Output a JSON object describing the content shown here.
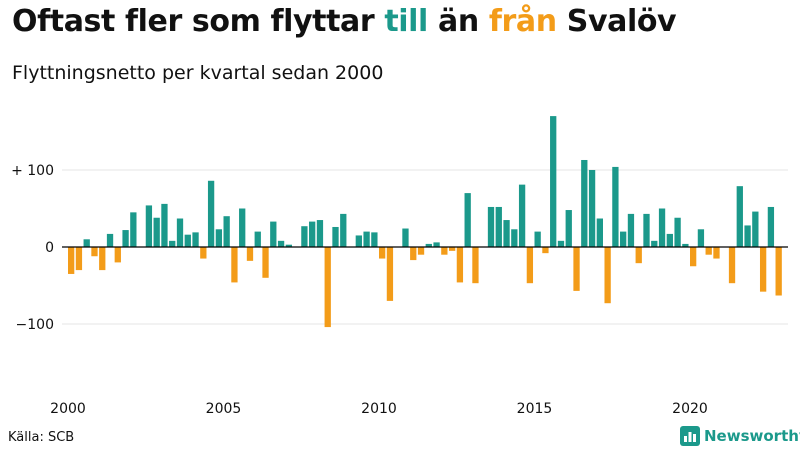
{
  "header": {
    "title_parts": [
      "Oftast fler som flyttar ",
      "till",
      " än ",
      "från",
      " Svalöv"
    ],
    "subtitle": "Flyttningsnetto per kvartal sedan 2000"
  },
  "footer": {
    "source": "Källa: SCB",
    "brand": "Newsworthy",
    "brand_icon": "bar-chart-icon"
  },
  "colors": {
    "positive": "#1b998b",
    "negative": "#f39c19",
    "grid": "#e6e6e6",
    "zero_line": "#000000"
  },
  "chart_data": {
    "type": "bar",
    "title": "Oftast fler som flyttar till än från Svalöv",
    "subtitle": "Flyttningsnetto per kvartal sedan 2000",
    "xlabel": "",
    "ylabel": "",
    "x_start": "2000 Q1",
    "y_ticks": [
      {
        "value": 100,
        "label": "+ 100"
      },
      {
        "value": 0,
        "label": "0"
      },
      {
        "value": -100,
        "label": "−100"
      }
    ],
    "x_ticks": [
      {
        "value": 2000,
        "label": "2000"
      },
      {
        "value": 2005,
        "label": "2005"
      },
      {
        "value": 2010,
        "label": "2010"
      },
      {
        "value": 2015,
        "label": "2015"
      },
      {
        "value": 2020,
        "label": "2020"
      }
    ],
    "ylim": [
      -130,
      175
    ],
    "grid": true,
    "values": [
      -35,
      -30,
      10,
      -12,
      -30,
      17,
      -20,
      22,
      45,
      0,
      54,
      38,
      56,
      8,
      37,
      16,
      19,
      -15,
      86,
      23,
      40,
      -46,
      50,
      -18,
      20,
      -40,
      33,
      8,
      3,
      0,
      27,
      33,
      35,
      -104,
      26,
      43,
      0,
      15,
      20,
      19,
      -15,
      -70,
      0,
      24,
      -17,
      -10,
      4,
      6,
      -10,
      -5,
      -46,
      70,
      -47,
      0,
      52,
      52,
      35,
      23,
      81,
      -47,
      20,
      -8,
      170,
      8,
      48,
      -57,
      113,
      100,
      37,
      -73,
      104,
      20,
      43,
      -21,
      43,
      8,
      50,
      17,
      38,
      4,
      -25,
      23,
      -10,
      -15,
      0,
      -47,
      79,
      28,
      46,
      -58,
      52,
      -63
    ]
  }
}
